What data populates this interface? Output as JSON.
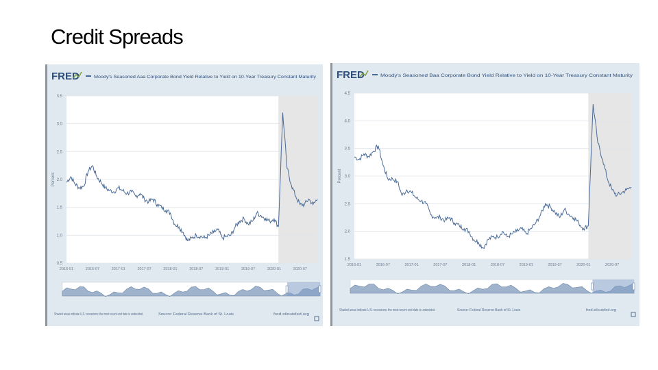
{
  "slide_title": "Credit Spreads",
  "colors": {
    "panel_bg": "#e1e9f0",
    "plot_bg": "#ffffff",
    "line": "#4a6a96",
    "recession": "#e6e6e6",
    "grid": "#dfe4ea"
  },
  "chart_data": [
    {
      "type": "line",
      "logo": "FRED",
      "series_name": "Moody's Seasoned Aaa Corporate Bond Yield Relative to Yield on 10-Year Treasury Constant Maturity",
      "ylabel": "Percent",
      "ylim": [
        0.5,
        3.5
      ],
      "yticks": [
        "0.5",
        "1.0",
        "1.5",
        "2.0",
        "2.5",
        "3.0",
        "3.5"
      ],
      "xticks": [
        "2016-01",
        "2016-07",
        "2017-01",
        "2017-07",
        "2018-01",
        "2018-07",
        "2019-01",
        "2019-07",
        "2020-01",
        "2020-07"
      ],
      "xlim": [
        "2016-01",
        "2020-11"
      ],
      "recession": [
        "2020-02",
        "2020-11"
      ],
      "grid": true,
      "points": [
        [
          "2016-01",
          1.95
        ],
        [
          "2016-02",
          2.05
        ],
        [
          "2016-03",
          1.92
        ],
        [
          "2016-04",
          1.85
        ],
        [
          "2016-05",
          1.88
        ],
        [
          "2016-06",
          2.15
        ],
        [
          "2016-07",
          2.25
        ],
        [
          "2016-08",
          2.05
        ],
        [
          "2016-09",
          1.95
        ],
        [
          "2016-10",
          1.85
        ],
        [
          "2016-11",
          1.8
        ],
        [
          "2016-12",
          1.78
        ],
        [
          "2017-01",
          1.85
        ],
        [
          "2017-02",
          1.8
        ],
        [
          "2017-03",
          1.75
        ],
        [
          "2017-04",
          1.78
        ],
        [
          "2017-05",
          1.7
        ],
        [
          "2017-06",
          1.75
        ],
        [
          "2017-07",
          1.65
        ],
        [
          "2017-08",
          1.6
        ],
        [
          "2017-09",
          1.65
        ],
        [
          "2017-10",
          1.55
        ],
        [
          "2017-11",
          1.5
        ],
        [
          "2017-12",
          1.45
        ],
        [
          "2018-01",
          1.4
        ],
        [
          "2018-02",
          1.2
        ],
        [
          "2018-03",
          1.15
        ],
        [
          "2018-04",
          1.05
        ],
        [
          "2018-05",
          0.9
        ],
        [
          "2018-06",
          0.95
        ],
        [
          "2018-07",
          1.0
        ],
        [
          "2018-08",
          0.98
        ],
        [
          "2018-09",
          0.95
        ],
        [
          "2018-10",
          1.0
        ],
        [
          "2018-11",
          1.05
        ],
        [
          "2018-12",
          1.1
        ],
        [
          "2019-01",
          0.95
        ],
        [
          "2019-02",
          0.98
        ],
        [
          "2019-03",
          1.0
        ],
        [
          "2019-04",
          1.15
        ],
        [
          "2019-05",
          1.25
        ],
        [
          "2019-06",
          1.3
        ],
        [
          "2019-07",
          1.2
        ],
        [
          "2019-08",
          1.25
        ],
        [
          "2019-09",
          1.4
        ],
        [
          "2019-10",
          1.35
        ],
        [
          "2019-11",
          1.3
        ],
        [
          "2019-12",
          1.25
        ],
        [
          "2020-01",
          1.3
        ],
        [
          "2020-02",
          1.15
        ],
        [
          "2020-03",
          3.2
        ],
        [
          "2020-04",
          2.2
        ],
        [
          "2020-05",
          1.9
        ],
        [
          "2020-06",
          1.7
        ],
        [
          "2020-07",
          1.55
        ],
        [
          "2020-08",
          1.55
        ],
        [
          "2020-09",
          1.65
        ],
        [
          "2020-10",
          1.55
        ],
        [
          "2020-11",
          1.65
        ]
      ],
      "footer_left": "Shaded areas indicate U.S. recessions; the most recent end date is undecided.",
      "footer_mid": "Source: Federal Reserve Bank of St. Louis",
      "footer_right": "fred.stlouisfed.org"
    },
    {
      "type": "line",
      "logo": "FRED",
      "series_name": "Moody's Seasoned Baa Corporate Bond Yield Relative to Yield on 10-Year Treasury Constant Maturity",
      "ylabel": "Percent",
      "ylim": [
        1.5,
        4.5
      ],
      "yticks": [
        "1.5",
        "2.0",
        "2.5",
        "3.0",
        "3.5",
        "4.0",
        "4.5"
      ],
      "xticks": [
        "2016-01",
        "2016-07",
        "2017-01",
        "2017-07",
        "2018-01",
        "2018-07",
        "2019-01",
        "2019-07",
        "2020-01",
        "2020-07"
      ],
      "xlim": [
        "2016-01",
        "2020-11"
      ],
      "recession": [
        "2020-02",
        "2020-11"
      ],
      "grid": true,
      "points": [
        [
          "2016-01",
          3.35
        ],
        [
          "2016-02",
          3.3
        ],
        [
          "2016-03",
          3.4
        ],
        [
          "2016-04",
          3.35
        ],
        [
          "2016-05",
          3.45
        ],
        [
          "2016-06",
          3.55
        ],
        [
          "2016-07",
          3.2
        ],
        [
          "2016-08",
          2.95
        ],
        [
          "2016-09",
          2.95
        ],
        [
          "2016-10",
          2.9
        ],
        [
          "2016-11",
          2.65
        ],
        [
          "2016-12",
          2.75
        ],
        [
          "2017-01",
          2.7
        ],
        [
          "2017-02",
          2.6
        ],
        [
          "2017-03",
          2.55
        ],
        [
          "2017-04",
          2.5
        ],
        [
          "2017-05",
          2.3
        ],
        [
          "2017-06",
          2.25
        ],
        [
          "2017-07",
          2.25
        ],
        [
          "2017-08",
          2.2
        ],
        [
          "2017-09",
          2.25
        ],
        [
          "2017-10",
          2.15
        ],
        [
          "2017-11",
          2.1
        ],
        [
          "2017-12",
          2.05
        ],
        [
          "2018-01",
          2.0
        ],
        [
          "2018-02",
          1.85
        ],
        [
          "2018-03",
          1.8
        ],
        [
          "2018-04",
          1.7
        ],
        [
          "2018-05",
          1.85
        ],
        [
          "2018-06",
          1.9
        ],
        [
          "2018-07",
          1.9
        ],
        [
          "2018-08",
          2.0
        ],
        [
          "2018-09",
          1.9
        ],
        [
          "2018-10",
          1.95
        ],
        [
          "2018-11",
          2.0
        ],
        [
          "2018-12",
          2.05
        ],
        [
          "2019-01",
          1.95
        ],
        [
          "2019-02",
          2.05
        ],
        [
          "2019-03",
          2.15
        ],
        [
          "2019-04",
          2.3
        ],
        [
          "2019-05",
          2.5
        ],
        [
          "2019-06",
          2.45
        ],
        [
          "2019-07",
          2.35
        ],
        [
          "2019-08",
          2.25
        ],
        [
          "2019-09",
          2.4
        ],
        [
          "2019-10",
          2.3
        ],
        [
          "2019-11",
          2.25
        ],
        [
          "2019-12",
          2.15
        ],
        [
          "2020-01",
          2.05
        ],
        [
          "2020-02",
          2.1
        ],
        [
          "2020-03",
          4.3
        ],
        [
          "2020-04",
          3.6
        ],
        [
          "2020-05",
          3.3
        ],
        [
          "2020-06",
          2.95
        ],
        [
          "2020-07",
          2.75
        ],
        [
          "2020-08",
          2.65
        ],
        [
          "2020-09",
          2.7
        ],
        [
          "2020-10",
          2.75
        ],
        [
          "2020-11",
          2.8
        ]
      ],
      "footer_left": "Shaded areas indicate U.S. recessions; the most recent end date is undecided.",
      "footer_mid": "Source: Federal Reserve Bank of St. Louis",
      "footer_right": "fred.stlouisfed.org"
    }
  ]
}
